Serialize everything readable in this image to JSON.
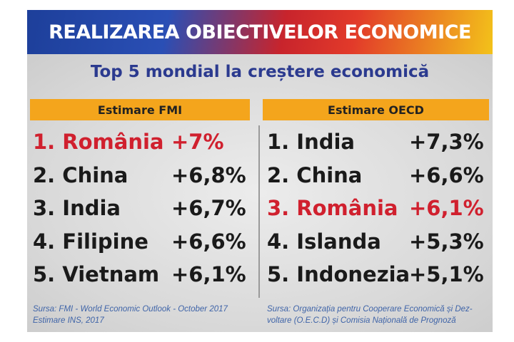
{
  "header": {
    "title": "REALIZAREA OBIECTIVELOR ECONOMICE",
    "subtitle": "Top 5 mondial la creștere economică"
  },
  "columns": [
    {
      "header": "Estimare FMI",
      "rows": [
        {
          "name": "1. România",
          "change": "+7%",
          "color": "#d0202e"
        },
        {
          "name": "2. China",
          "change": "+6,8%",
          "color": "#1a1a1a"
        },
        {
          "name": "3. India",
          "change": "+6,7%",
          "color": "#1a1a1a"
        },
        {
          "name": "4. Filipine",
          "change": "+6,6%",
          "color": "#1a1a1a"
        },
        {
          "name": "5. Vietnam",
          "change": "+6,1%",
          "color": "#1a1a1a"
        }
      ],
      "source": [
        "Sursa: FMI - World Economic Outlook  - October 2017",
        "Estimare INS, 2017"
      ]
    },
    {
      "header": "Estimare OECD",
      "rows": [
        {
          "name": "1. India",
          "change": "+7,3%",
          "color": "#1a1a1a"
        },
        {
          "name": "2. China",
          "change": "+6,6%",
          "color": "#1a1a1a"
        },
        {
          "name": "3. România",
          "change": "+6,1%",
          "color": "#d0202e"
        },
        {
          "name": "4. Islanda",
          "change": "+5,3%",
          "color": "#1a1a1a"
        },
        {
          "name": "5. Indonezia",
          "change": "+5,1%",
          "color": "#1a1a1a"
        }
      ],
      "source": [
        "Sursa: Organizația pentru Cooperare Economică și Dez-",
        "voltare (O.E.C.D) și Comisia Națională de Prognoză"
      ]
    }
  ]
}
